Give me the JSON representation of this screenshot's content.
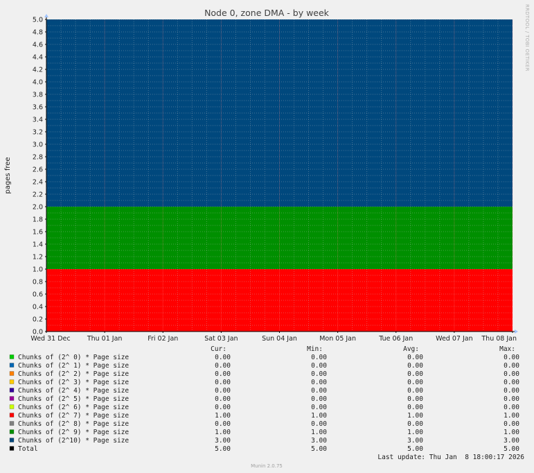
{
  "chart_data": {
    "type": "area",
    "title": "Node 0, zone DMA - by week",
    "ylabel": "pages free",
    "ylim": [
      0,
      5
    ],
    "y_ticks": [
      "0.0",
      "0.2",
      "0.4",
      "0.6",
      "0.8",
      "1.0",
      "1.2",
      "1.4",
      "1.6",
      "1.8",
      "2.0",
      "2.2",
      "2.4",
      "2.6",
      "2.8",
      "3.0",
      "3.2",
      "3.4",
      "3.6",
      "3.8",
      "4.0",
      "4.2",
      "4.4",
      "4.6",
      "4.8",
      "5.0"
    ],
    "x_ticks": [
      "Wed 31 Dec",
      "Thu 01 Jan",
      "Fri 02 Jan",
      "Sat 03 Jan",
      "Sun 04 Jan",
      "Mon 05 Jan",
      "Tue 06 Jan",
      "Wed 07 Jan",
      "Thu 08 Jan"
    ],
    "stacked": true,
    "grid": true,
    "series": [
      {
        "name": "Chunks of (2^ 0) * Page size",
        "color": "#00cc00",
        "cur": "0.00",
        "min": "0.00",
        "avg": "0.00",
        "max": "0.00",
        "value": 0
      },
      {
        "name": "Chunks of (2^ 1) * Page size",
        "color": "#0066b3",
        "cur": "0.00",
        "min": "0.00",
        "avg": "0.00",
        "max": "0.00",
        "value": 0
      },
      {
        "name": "Chunks of (2^ 2) * Page size",
        "color": "#ff8000",
        "cur": "0.00",
        "min": "0.00",
        "avg": "0.00",
        "max": "0.00",
        "value": 0
      },
      {
        "name": "Chunks of (2^ 3) * Page size",
        "color": "#ffcc00",
        "cur": "0.00",
        "min": "0.00",
        "avg": "0.00",
        "max": "0.00",
        "value": 0
      },
      {
        "name": "Chunks of (2^ 4) * Page size",
        "color": "#330099",
        "cur": "0.00",
        "min": "0.00",
        "avg": "0.00",
        "max": "0.00",
        "value": 0
      },
      {
        "name": "Chunks of (2^ 5) * Page size",
        "color": "#990099",
        "cur": "0.00",
        "min": "0.00",
        "avg": "0.00",
        "max": "0.00",
        "value": 0
      },
      {
        "name": "Chunks of (2^ 6) * Page size",
        "color": "#ccff00",
        "cur": "0.00",
        "min": "0.00",
        "avg": "0.00",
        "max": "0.00",
        "value": 0
      },
      {
        "name": "Chunks of (2^ 7) * Page size",
        "color": "#ff0000",
        "cur": "1.00",
        "min": "1.00",
        "avg": "1.00",
        "max": "1.00",
        "value": 1
      },
      {
        "name": "Chunks of (2^ 8) * Page size",
        "color": "#808080",
        "cur": "0.00",
        "min": "0.00",
        "avg": "0.00",
        "max": "0.00",
        "value": 0
      },
      {
        "name": "Chunks of (2^ 9) * Page size",
        "color": "#008f00",
        "cur": "1.00",
        "min": "1.00",
        "avg": "1.00",
        "max": "1.00",
        "value": 1
      },
      {
        "name": "Chunks of (2^10) * Page size",
        "color": "#00487d",
        "cur": "3.00",
        "min": "3.00",
        "avg": "3.00",
        "max": "3.00",
        "value": 3
      }
    ],
    "total": {
      "name": "Total",
      "color": "#000000",
      "cur": "5.00",
      "min": "5.00",
      "avg": "5.00",
      "max": "5.00"
    }
  },
  "legend_headers": {
    "cur": "Cur:",
    "min": "Min:",
    "avg": "Avg:",
    "max": "Max:"
  },
  "last_update": "Last update: Thu Jan  8 18:00:17 2026",
  "watermark": "RRDTOOL / TOBI OETIKER",
  "footer": "Munin 2.0.75"
}
